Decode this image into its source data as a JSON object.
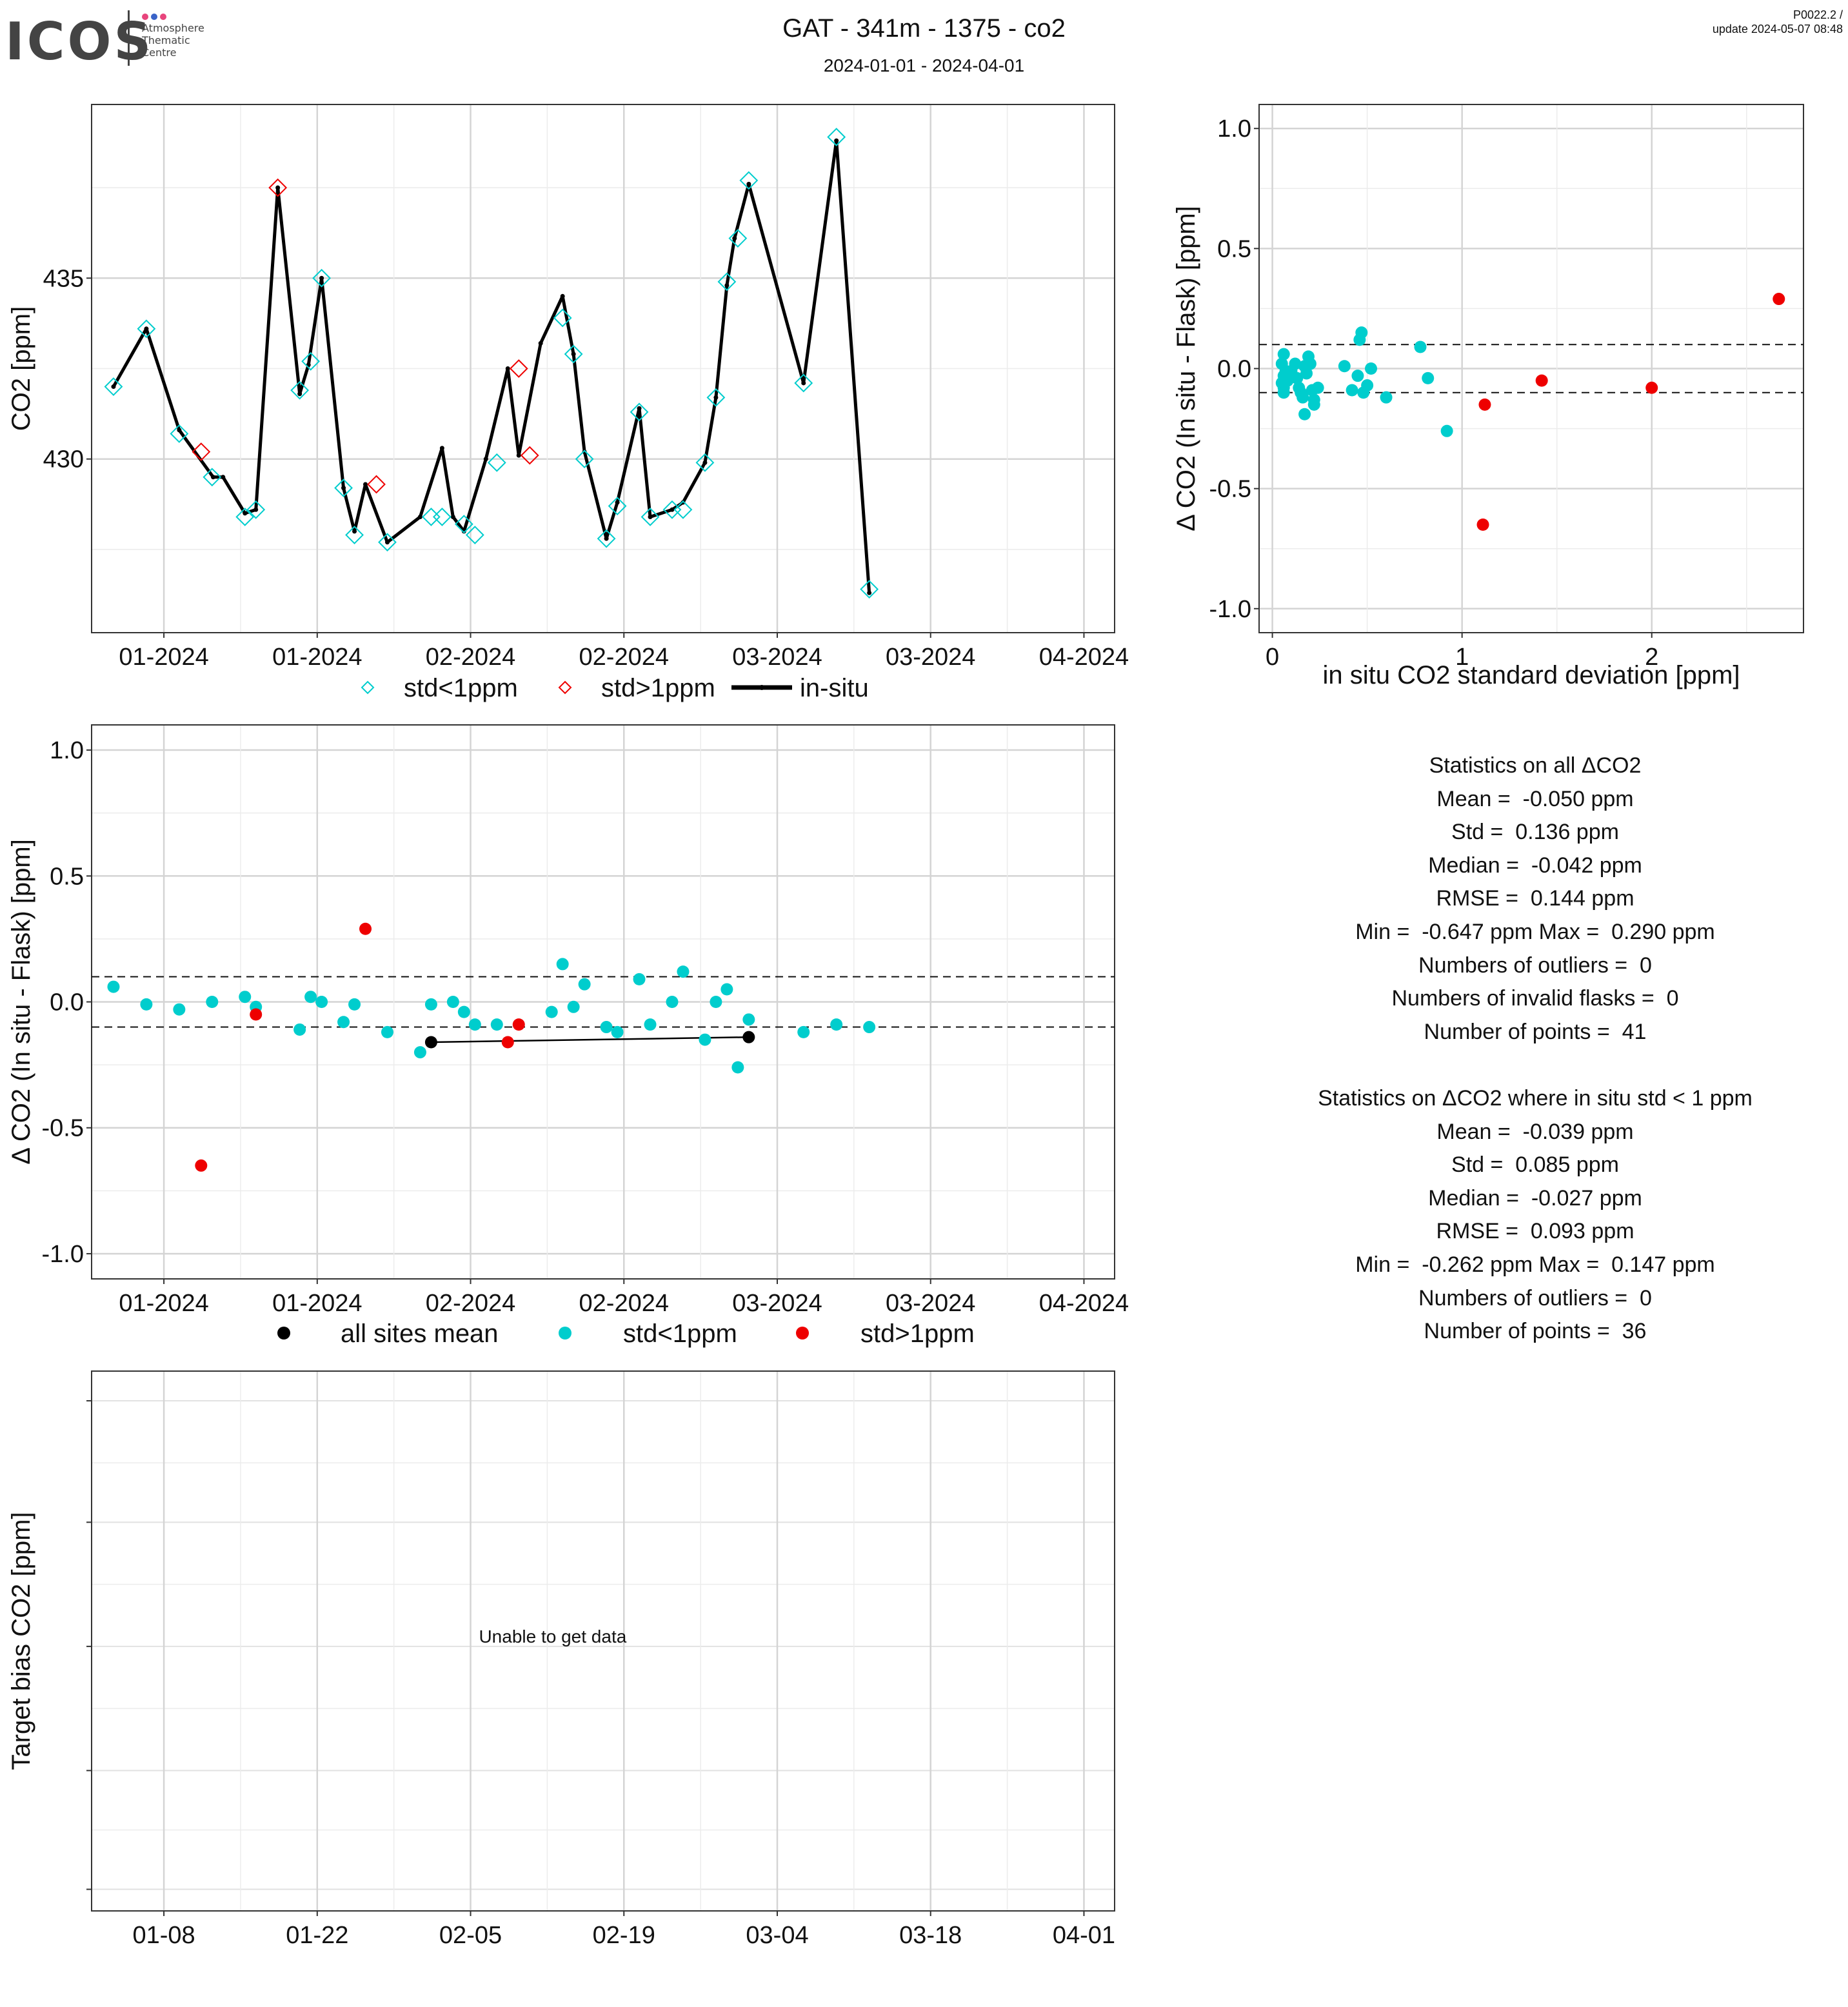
{
  "header": {
    "logo_text": "ICOS",
    "logo_sub": [
      "Atmosphere",
      "Thematic",
      "Centre"
    ],
    "logo_dot_colors": [
      "#e8457c",
      "#3a63c8",
      "#e8457c"
    ],
    "title": "GAT - 341m - 1375 - co2",
    "subtitle": "2024-01-01 - 2024-04-01",
    "version_line1": "P0022.2 /",
    "version_line2": "update  2024-05-07 08:48"
  },
  "colors": {
    "cyan": "#00CDCD",
    "red": "#EE0000",
    "black": "#000000"
  },
  "chart_data": [
    {
      "id": "timeseries",
      "type": "line",
      "ylabel": "CO2 [ppm]",
      "xlim": [
        -3.6,
        89.8
      ],
      "ylim": [
        425.2,
        439.8
      ],
      "yticks": [
        430,
        435
      ],
      "xticks": [
        {
          "pos": 3.0,
          "label": "01-2024"
        },
        {
          "pos": 17.0,
          "label": "01-2024"
        },
        {
          "pos": 31.0,
          "label": "02-2024"
        },
        {
          "pos": 45.0,
          "label": "02-2024"
        },
        {
          "pos": 59.0,
          "label": "03-2024"
        },
        {
          "pos": 73.0,
          "label": "03-2024"
        },
        {
          "pos": 87.0,
          "label": "04-2024"
        }
      ],
      "legend": [
        "std<1ppm",
        "std>1ppm",
        "in-situ"
      ],
      "insitu": [
        [
          -1.6,
          432.0
        ],
        [
          1.4,
          433.6
        ],
        [
          4.4,
          430.8
        ],
        [
          7.5,
          429.5
        ],
        [
          8.4,
          429.5
        ],
        [
          10.4,
          428.5
        ],
        [
          11.4,
          428.6
        ],
        [
          13.4,
          437.5
        ],
        [
          15.4,
          431.8
        ],
        [
          16.2,
          432.6
        ],
        [
          17.4,
          435.0
        ],
        [
          19.4,
          429.2
        ],
        [
          20.4,
          428.0
        ],
        [
          21.4,
          429.3
        ],
        [
          23.4,
          427.7
        ],
        [
          26.4,
          428.4
        ],
        [
          28.4,
          430.3
        ],
        [
          29.4,
          428.4
        ],
        [
          30.4,
          428.0
        ],
        [
          32.4,
          430.0
        ],
        [
          34.4,
          432.5
        ],
        [
          35.4,
          430.1
        ],
        [
          37.4,
          433.2
        ],
        [
          39.4,
          434.5
        ],
        [
          40.4,
          432.9
        ],
        [
          41.4,
          430.2
        ],
        [
          43.4,
          427.8
        ],
        [
          44.4,
          428.8
        ],
        [
          46.4,
          431.4
        ],
        [
          47.4,
          428.4
        ],
        [
          49.4,
          428.6
        ],
        [
          50.4,
          428.8
        ],
        [
          52.4,
          429.9
        ],
        [
          53.4,
          431.7
        ],
        [
          54.4,
          434.8
        ],
        [
          55.1,
          436.1
        ],
        [
          56.4,
          437.6
        ],
        [
          61.4,
          432.1
        ],
        [
          64.4,
          438.8
        ],
        [
          67.4,
          426.3
        ]
      ],
      "flask_ok": [
        [
          -1.6,
          432.0
        ],
        [
          1.4,
          433.6
        ],
        [
          4.4,
          430.7
        ],
        [
          7.4,
          429.5
        ],
        [
          10.4,
          428.4
        ],
        [
          11.4,
          428.6
        ],
        [
          15.4,
          431.9
        ],
        [
          16.4,
          432.7
        ],
        [
          17.4,
          435.0
        ],
        [
          19.4,
          429.2
        ],
        [
          20.4,
          427.9
        ],
        [
          23.4,
          427.7
        ],
        [
          27.4,
          428.4
        ],
        [
          28.4,
          428.4
        ],
        [
          30.4,
          428.2
        ],
        [
          31.4,
          427.9
        ],
        [
          33.4,
          429.9
        ],
        [
          39.4,
          433.9
        ],
        [
          40.4,
          432.9
        ],
        [
          41.4,
          430.0
        ],
        [
          43.4,
          427.8
        ],
        [
          44.4,
          428.7
        ],
        [
          46.4,
          431.3
        ],
        [
          47.4,
          428.4
        ],
        [
          49.4,
          428.6
        ],
        [
          50.4,
          428.6
        ],
        [
          52.4,
          429.9
        ],
        [
          53.4,
          431.7
        ],
        [
          54.4,
          434.9
        ],
        [
          55.4,
          436.1
        ],
        [
          56.4,
          437.7
        ],
        [
          61.4,
          432.1
        ],
        [
          64.4,
          438.9
        ],
        [
          67.4,
          426.4
        ]
      ],
      "flask_bad": [
        [
          6.4,
          430.2
        ],
        [
          13.4,
          437.5
        ],
        [
          22.4,
          429.3
        ],
        [
          35.4,
          432.5
        ],
        [
          36.4,
          430.1
        ]
      ]
    },
    {
      "id": "scatter_std",
      "type": "scatter",
      "xlabel": "in situ CO2 standard deviation [ppm]",
      "ylabel": "Δ CO2 (In situ - Flask) [ppm]",
      "xlim": [
        -0.07,
        2.8
      ],
      "ylim": [
        -1.1,
        1.1
      ],
      "xticks": [
        0,
        1,
        2
      ],
      "yticks": [
        "1.0",
        "0.5",
        "0.0",
        "-0.5",
        "-1.0"
      ],
      "hlines": [
        0.1,
        -0.1
      ],
      "cyan": [
        [
          0.06,
          0.06
        ],
        [
          0.05,
          0.02
        ],
        [
          0.07,
          -0.01
        ],
        [
          0.06,
          -0.03
        ],
        [
          0.05,
          -0.06
        ],
        [
          0.06,
          -0.08
        ],
        [
          0.06,
          -0.1
        ],
        [
          0.08,
          -0.05
        ],
        [
          0.09,
          -0.03
        ],
        [
          0.1,
          -0.01
        ],
        [
          0.12,
          0.02
        ],
        [
          0.13,
          -0.04
        ],
        [
          0.14,
          -0.08
        ],
        [
          0.15,
          -0.1
        ],
        [
          0.16,
          -0.12
        ],
        [
          0.17,
          0.01
        ],
        [
          0.18,
          -0.02
        ],
        [
          0.19,
          0.05
        ],
        [
          0.2,
          0.02
        ],
        [
          0.21,
          -0.09
        ],
        [
          0.22,
          -0.13
        ],
        [
          0.24,
          -0.08
        ],
        [
          0.22,
          -0.15
        ],
        [
          0.17,
          -0.19
        ],
        [
          0.38,
          0.01
        ],
        [
          0.42,
          -0.09
        ],
        [
          0.45,
          -0.03
        ],
        [
          0.46,
          0.12
        ],
        [
          0.47,
          0.15
        ],
        [
          0.48,
          -0.1
        ],
        [
          0.5,
          -0.07
        ],
        [
          0.52,
          0.0
        ],
        [
          0.6,
          -0.12
        ],
        [
          0.78,
          0.09
        ],
        [
          0.82,
          -0.04
        ],
        [
          0.92,
          -0.26
        ]
      ],
      "red": [
        [
          1.12,
          -0.15
        ],
        [
          1.11,
          -0.65
        ],
        [
          1.42,
          -0.05
        ],
        [
          2.0,
          -0.08
        ],
        [
          2.67,
          0.29
        ]
      ]
    },
    {
      "id": "delta_time",
      "type": "scatter",
      "ylabel": "Δ CO2 (In situ - Flask) [ppm]",
      "xlim": [
        -3.6,
        89.8
      ],
      "ylim": [
        -1.1,
        1.1
      ],
      "yticks": [
        "1.0",
        "0.5",
        "0.0",
        "-0.5",
        "-1.0"
      ],
      "hlines": [
        0.1,
        -0.1
      ],
      "xticks": [
        {
          "pos": 3.0,
          "label": "01-2024"
        },
        {
          "pos": 17.0,
          "label": "01-2024"
        },
        {
          "pos": 31.0,
          "label": "02-2024"
        },
        {
          "pos": 45.0,
          "label": "02-2024"
        },
        {
          "pos": 59.0,
          "label": "03-2024"
        },
        {
          "pos": 73.0,
          "label": "03-2024"
        },
        {
          "pos": 87.0,
          "label": "04-2024"
        }
      ],
      "legend": [
        "all sites mean",
        "std<1ppm",
        "std>1ppm"
      ],
      "mean_line": [
        [
          27.4,
          -0.16
        ],
        [
          56.4,
          -0.14
        ]
      ],
      "cyan": [
        [
          -1.6,
          0.06
        ],
        [
          1.4,
          -0.01
        ],
        [
          4.4,
          -0.03
        ],
        [
          7.4,
          0.0
        ],
        [
          10.4,
          0.02
        ],
        [
          11.4,
          -0.02
        ],
        [
          15.4,
          -0.11
        ],
        [
          16.4,
          0.02
        ],
        [
          17.4,
          0.0
        ],
        [
          19.4,
          -0.08
        ],
        [
          20.4,
          -0.01
        ],
        [
          23.4,
          -0.12
        ],
        [
          26.4,
          -0.2
        ],
        [
          27.4,
          -0.01
        ],
        [
          29.4,
          0.0
        ],
        [
          30.4,
          -0.04
        ],
        [
          31.4,
          -0.09
        ],
        [
          33.4,
          -0.09
        ],
        [
          38.4,
          -0.04
        ],
        [
          39.4,
          0.15
        ],
        [
          40.4,
          -0.02
        ],
        [
          41.4,
          0.07
        ],
        [
          43.4,
          -0.1
        ],
        [
          44.4,
          -0.12
        ],
        [
          46.4,
          0.09
        ],
        [
          47.4,
          -0.09
        ],
        [
          49.4,
          0.0
        ],
        [
          50.4,
          0.12
        ],
        [
          52.4,
          -0.15
        ],
        [
          53.4,
          0.0
        ],
        [
          54.4,
          0.05
        ],
        [
          55.4,
          -0.26
        ],
        [
          56.4,
          -0.07
        ],
        [
          61.4,
          -0.12
        ],
        [
          64.4,
          -0.09
        ],
        [
          67.4,
          -0.1
        ]
      ],
      "red": [
        [
          6.4,
          -0.65
        ],
        [
          11.4,
          -0.05
        ],
        [
          21.4,
          0.29
        ],
        [
          34.4,
          -0.16
        ],
        [
          35.4,
          -0.09
        ]
      ]
    },
    {
      "id": "target_bias",
      "type": "line",
      "ylabel": "Target bias CO2 [ppm]",
      "xlim": [
        -3.6,
        89.8
      ],
      "xticks": [
        {
          "pos": 3.0,
          "label": "01-08"
        },
        {
          "pos": 17.0,
          "label": "01-22"
        },
        {
          "pos": 31.0,
          "label": "02-05"
        },
        {
          "pos": 45.0,
          "label": "02-19"
        },
        {
          "pos": 59.0,
          "label": "03-04"
        },
        {
          "pos": 73.0,
          "label": "03-18"
        },
        {
          "pos": 87.0,
          "label": "04-01"
        }
      ],
      "message": "Unable to get data"
    }
  ],
  "stats": {
    "all": [
      "Statistics on all ΔCO2",
      "Mean =  -0.050 ppm",
      "Std =  0.136 ppm",
      "Median =  -0.042 ppm",
      "RMSE =  0.144 ppm",
      "Min =  -0.647 ppm Max =  0.290 ppm",
      "Numbers of outliers =  0",
      "Numbers of invalid flasks =  0",
      "Number of points =  41"
    ],
    "std_lt_1": [
      "Statistics on ΔCO2 where in situ std < 1 ppm",
      "Mean =  -0.039 ppm",
      "Std =  0.085 ppm",
      "Median =  -0.027 ppm",
      "RMSE =  0.093 ppm",
      "Min =  -0.262 ppm Max =  0.147 ppm",
      "Numbers of outliers =  0",
      "Number of points =  36"
    ]
  }
}
